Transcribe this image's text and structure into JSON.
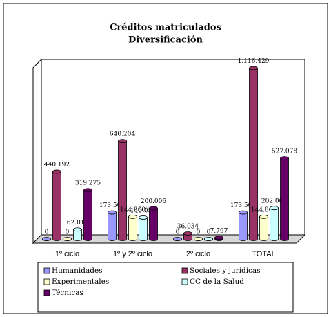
{
  "chart_data": {
    "type": "bar3d",
    "title": "Créditos matriculados",
    "subtitle": "Diversificación",
    "categories": [
      "1º ciclo",
      "1º y 2º ciclo",
      "2º ciclo",
      "TOTAL"
    ],
    "series": [
      {
        "name": "Humanidades",
        "color": "#9999ff",
        "values": [
          0,
          173506,
          0,
          173506
        ],
        "value_labels": [
          "0",
          "173.506",
          "0",
          "173.506"
        ]
      },
      {
        "name": "Sociales y jurídicas",
        "color": "#993366",
        "values": [
          440192,
          640204,
          36034,
          1116429
        ],
        "value_labels": [
          "440.192",
          "640.204",
          "36.034",
          "1.116.429"
        ]
      },
      {
        "name": "Experimentales",
        "color": "#ffffcc",
        "values": [
          0,
          144860,
          0,
          144860
        ],
        "value_labels": [
          "0",
          "144.860",
          "0",
          "144.860"
        ]
      },
      {
        "name": "CC de la Salud",
        "color": "#ccffff",
        "values": [
          62013,
          140053,
          0,
          202066
        ],
        "value_labels": [
          "62.013",
          "140.053",
          "0",
          "202.066"
        ]
      },
      {
        "name": "Técnicas",
        "color": "#660066",
        "values": [
          319275,
          200006,
          7797,
          527078
        ],
        "value_labels": [
          "319.275",
          "200.006",
          "7.797",
          "527.078"
        ]
      }
    ],
    "ylim": [
      0,
      1200000
    ]
  }
}
